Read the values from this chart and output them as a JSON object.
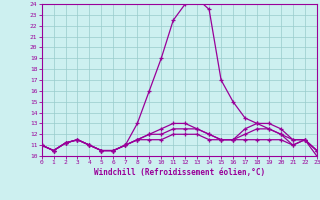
{
  "xlabel": "Windchill (Refroidissement éolien,°C)",
  "ylabel": "",
  "xlim": [
    0,
    23
  ],
  "ylim": [
    10,
    24
  ],
  "yticks": [
    10,
    11,
    12,
    13,
    14,
    15,
    16,
    17,
    18,
    19,
    20,
    21,
    22,
    23,
    24
  ],
  "xticks": [
    0,
    1,
    2,
    3,
    4,
    5,
    6,
    7,
    8,
    9,
    10,
    11,
    12,
    13,
    14,
    15,
    16,
    17,
    18,
    19,
    20,
    21,
    22,
    23
  ],
  "background_color": "#cdf0f0",
  "line_color": "#990099",
  "grid_color": "#99cccc",
  "lines": [
    [
      11.0,
      10.5,
      11.2,
      11.5,
      11.0,
      10.5,
      10.5,
      11.0,
      13.0,
      16.0,
      19.0,
      22.5,
      24.0,
      24.5,
      23.5,
      17.0,
      15.0,
      13.5,
      13.0,
      12.5,
      12.0,
      11.0,
      11.5,
      10.0
    ],
    [
      11.0,
      10.5,
      11.2,
      11.5,
      11.0,
      10.5,
      10.5,
      11.0,
      11.5,
      12.0,
      12.5,
      13.0,
      13.0,
      12.5,
      12.0,
      11.5,
      11.5,
      12.5,
      13.0,
      13.0,
      12.5,
      11.5,
      11.5,
      10.5
    ],
    [
      11.0,
      10.5,
      11.2,
      11.5,
      11.0,
      10.5,
      10.5,
      11.0,
      11.5,
      12.0,
      12.0,
      12.5,
      12.5,
      12.5,
      12.0,
      11.5,
      11.5,
      12.0,
      12.5,
      12.5,
      12.0,
      11.5,
      11.5,
      10.5
    ],
    [
      11.0,
      10.5,
      11.2,
      11.5,
      11.0,
      10.5,
      10.5,
      11.0,
      11.5,
      11.5,
      11.5,
      12.0,
      12.0,
      12.0,
      11.5,
      11.5,
      11.5,
      11.5,
      11.5,
      11.5,
      11.5,
      11.0,
      11.5,
      10.5
    ]
  ]
}
